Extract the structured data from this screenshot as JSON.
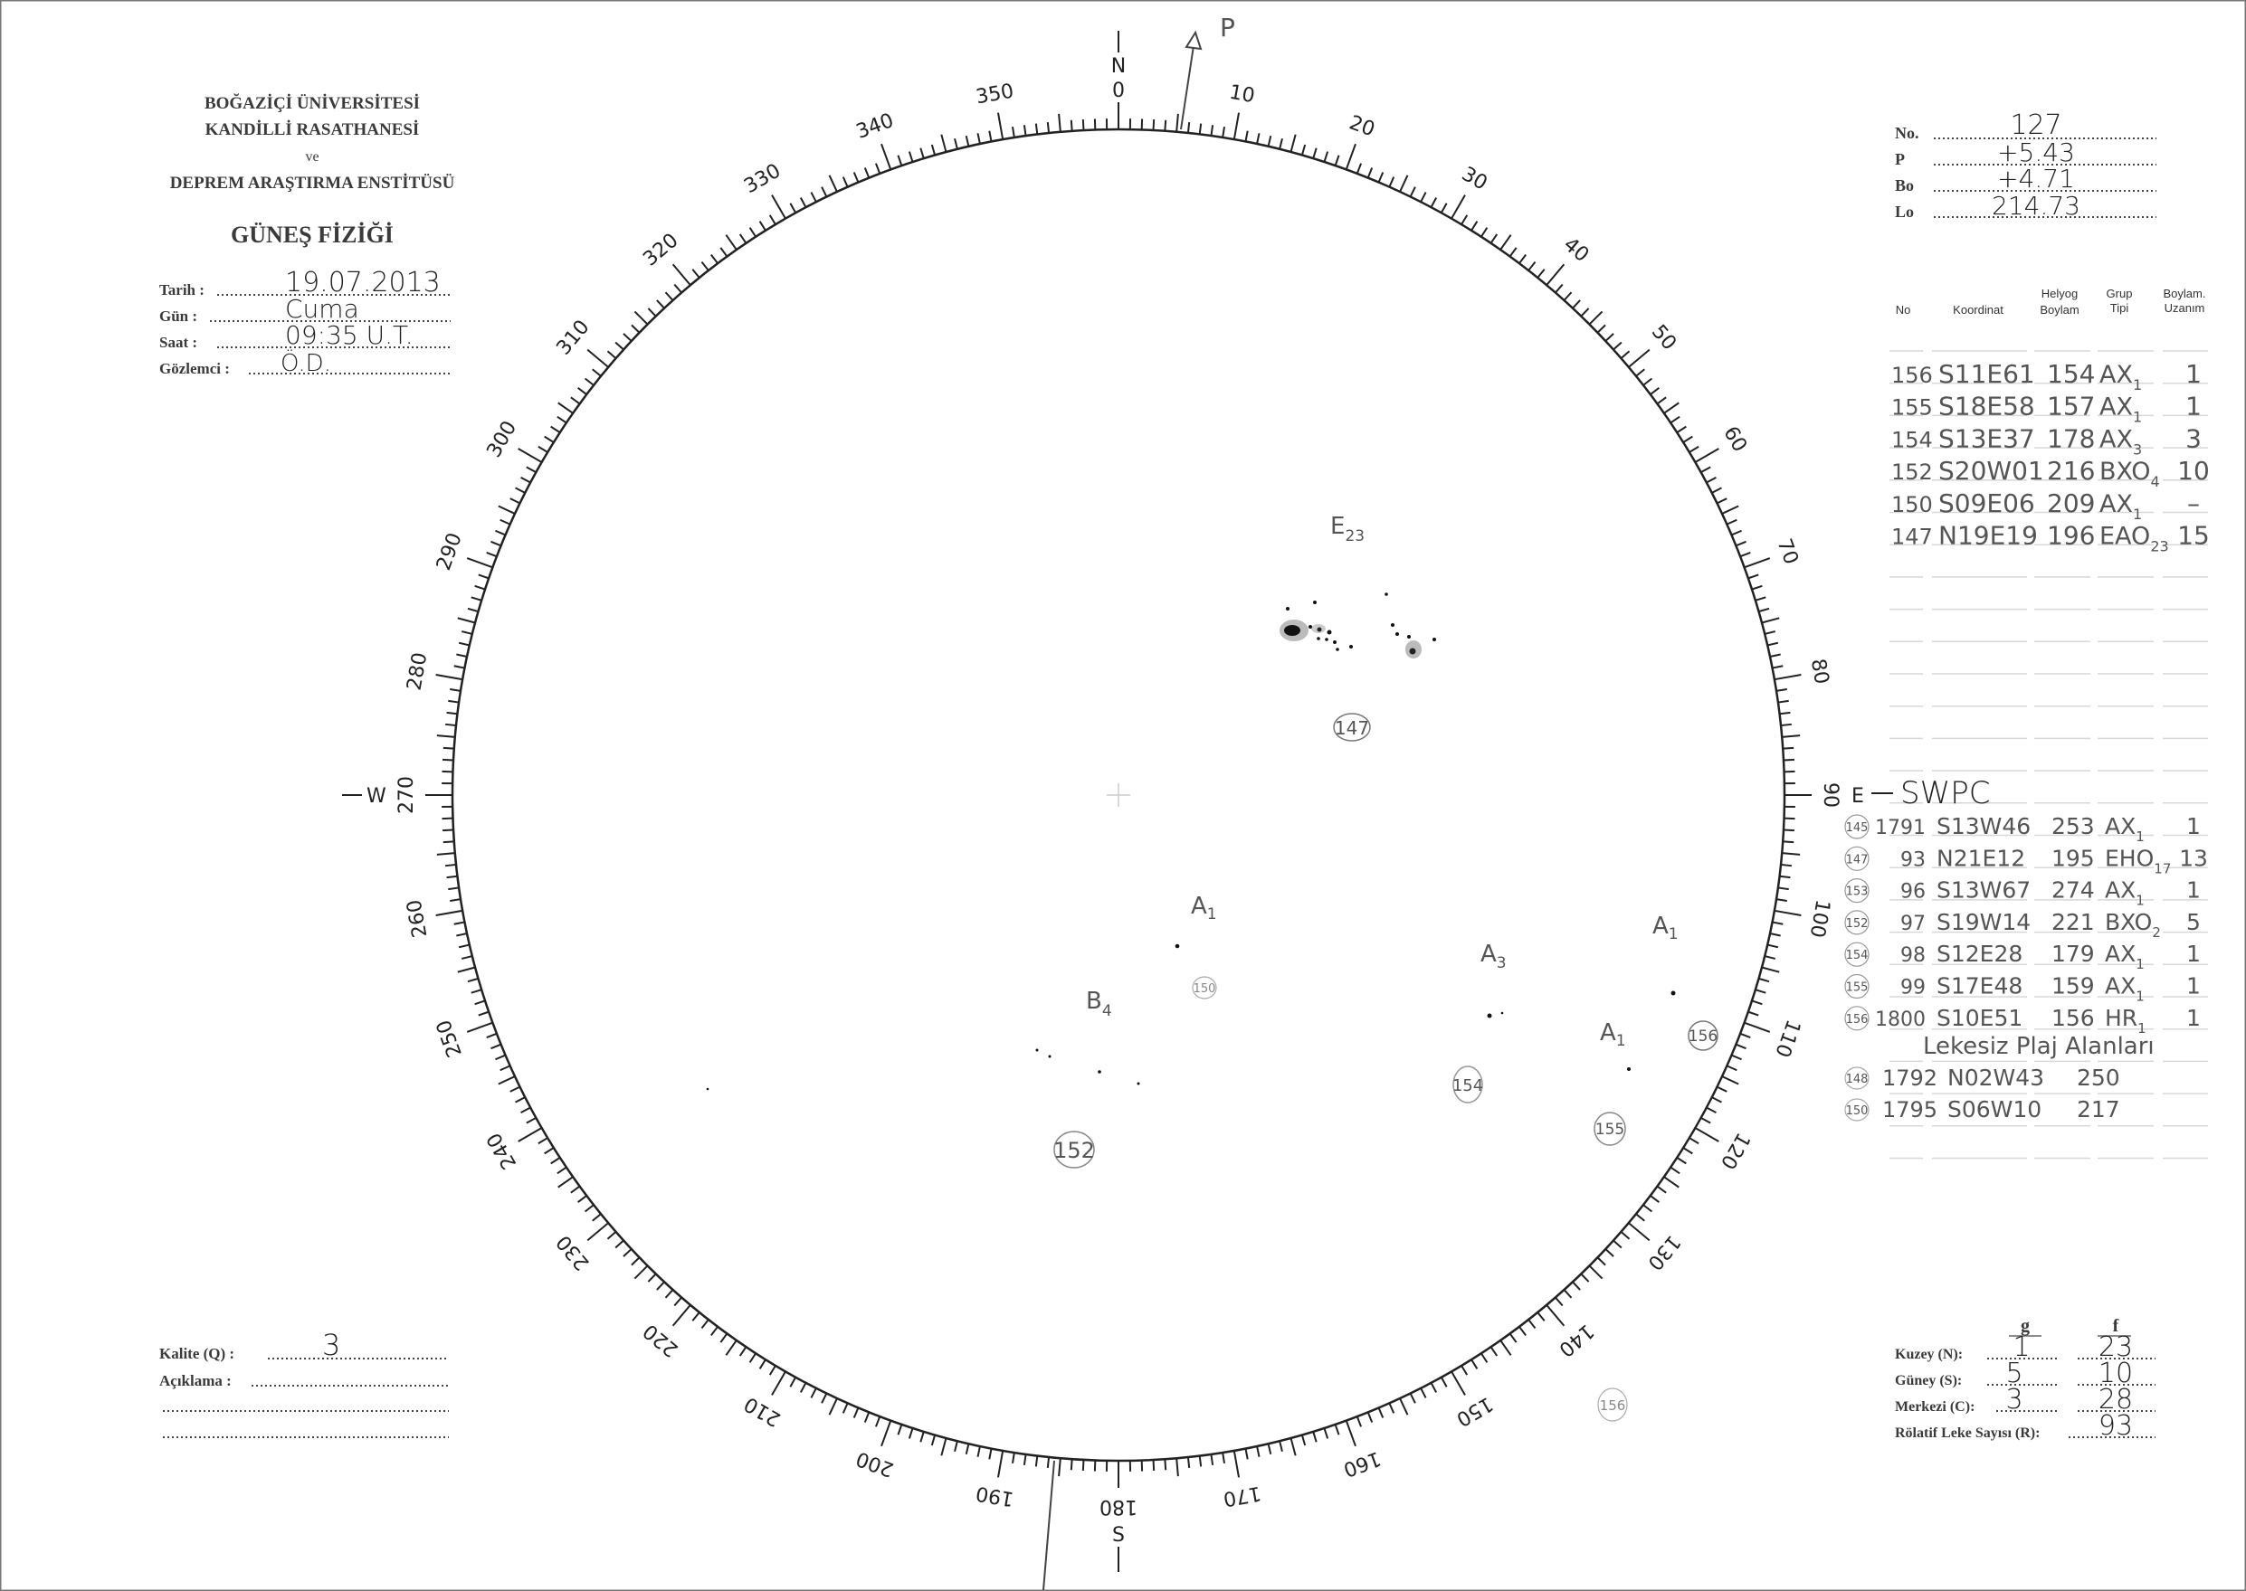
{
  "header": {
    "line1": "BOĞAZİÇİ ÜNİVERSİTESİ",
    "line2": "KANDİLLİ RASATHANESİ",
    "line3": "ve",
    "line4": "DEPREM ARAŞTIRMA ENSTİTÜSÜ",
    "title": "GÜNEŞ FİZİĞİ"
  },
  "observation": {
    "date_label": "Tarih :",
    "date": "19.07.2013",
    "day_label": "Gün :",
    "day": "Cuma",
    "time_label": "Saat :",
    "time": "09:35 U.T.",
    "observer_label": "Gözlemci :",
    "observer": "Ö.D."
  },
  "ephemeris": {
    "no_label": "No.",
    "no": "127",
    "p_label": "P",
    "p": "+5.43",
    "bo_label": "Bo",
    "bo": "+4.71",
    "lo_label": "Lo",
    "lo": "214.73"
  },
  "table_headers": {
    "no": "No",
    "coord": "Koordinat",
    "lon1": "Helyog",
    "lon2": "Boylam",
    "type1": "Grup",
    "type2": "Tipi",
    "ext1": "Boylam.",
    "ext2": "Uzanım"
  },
  "groups": [
    {
      "no": "156",
      "coord": "S11E61",
      "lon": "154",
      "type": "AX",
      "sub": "1",
      "ext": "1"
    },
    {
      "no": "155",
      "coord": "S18E58",
      "lon": "157",
      "type": "AX",
      "sub": "1",
      "ext": "1"
    },
    {
      "no": "154",
      "coord": "S13E37",
      "lon": "178",
      "type": "AX",
      "sub": "3",
      "ext": "3"
    },
    {
      "no": "152",
      "coord": "S20W01",
      "lon": "216",
      "type": "BXO",
      "sub": "4",
      "ext": "10"
    },
    {
      "no": "150",
      "coord": "S09E06",
      "lon": "209",
      "type": "AX",
      "sub": "1",
      "ext": "–"
    },
    {
      "no": "147",
      "coord": "N19E19",
      "lon": "196",
      "type": "EAO",
      "sub": "23",
      "ext": "15"
    }
  ],
  "swpc": {
    "title": "SWPC",
    "rows": [
      {
        "ref": "145",
        "no": "1791",
        "coord": "S13W46",
        "lon": "253",
        "type": "AX",
        "sub": "1",
        "ext": "1"
      },
      {
        "ref": "147",
        "no": "93",
        "coord": "N21E12",
        "lon": "195",
        "type": "EHO",
        "sub": "17",
        "ext": "13"
      },
      {
        "ref": "153",
        "no": "96",
        "coord": "S13W67",
        "lon": "274",
        "type": "AX",
        "sub": "1",
        "ext": "1"
      },
      {
        "ref": "152",
        "no": "97",
        "coord": "S19W14",
        "lon": "221",
        "type": "BXO",
        "sub": "2",
        "ext": "5"
      },
      {
        "ref": "154",
        "no": "98",
        "coord": "S12E28",
        "lon": "179",
        "type": "AX",
        "sub": "1",
        "ext": "1"
      },
      {
        "ref": "155",
        "no": "99",
        "coord": "S17E48",
        "lon": "159",
        "type": "AX",
        "sub": "1",
        "ext": "1"
      },
      {
        "ref": "156",
        "no": "1800",
        "coord": "S10E51",
        "lon": "156",
        "type": "HR",
        "sub": "1",
        "ext": "1"
      }
    ],
    "plage_title": "Lekesiz Plaj Alanları",
    "plages": [
      {
        "ref": "148",
        "no": "1792",
        "coord": "N02W43",
        "lon": "250"
      },
      {
        "ref": "150",
        "no": "1795",
        "coord": "S06W10",
        "lon": "217"
      }
    ]
  },
  "disk": {
    "north": "N",
    "south": "S",
    "east": "E",
    "west": "W",
    "p_axis": "P",
    "degree_labels": [
      "0",
      "10",
      "20",
      "30",
      "40",
      "50",
      "60",
      "70",
      "80",
      "90",
      "100",
      "110",
      "120",
      "130",
      "140",
      "150",
      "160",
      "170",
      "180",
      "190",
      "200",
      "210",
      "220",
      "230",
      "240",
      "250",
      "260",
      "270",
      "280",
      "290",
      "300",
      "310",
      "320",
      "330",
      "340",
      "350"
    ],
    "annotations": {
      "e23": "E",
      "e23_sub": "23",
      "g147": "147",
      "a1_150": "A",
      "a1_150_sub": "1",
      "g150": "150",
      "b4": "B",
      "b4_sub": "4",
      "g152": "152",
      "a3": "A",
      "a3_sub": "3",
      "g154": "154",
      "a1_155": "A",
      "a1_155_sub": "1",
      "g155": "155",
      "a1_156": "A",
      "a1_156_sub": "1",
      "g156": "156",
      "g156_outer": "156"
    }
  },
  "quality": {
    "quality_label": "Kalite (Q) :",
    "quality": "3",
    "remark_label": "Açıklama :"
  },
  "counts": {
    "g_header": "g",
    "f_header": "f",
    "north_label": "Kuzey (N):",
    "north_g": "1",
    "north_f": "23",
    "south_label": "Güney (S):",
    "south_g": "5",
    "south_f": "10",
    "center_label": "Merkezi (C):",
    "center_g": "3",
    "center_f": "28",
    "r_label": "Rölatif Leke Sayısı (R):",
    "r": "93"
  }
}
